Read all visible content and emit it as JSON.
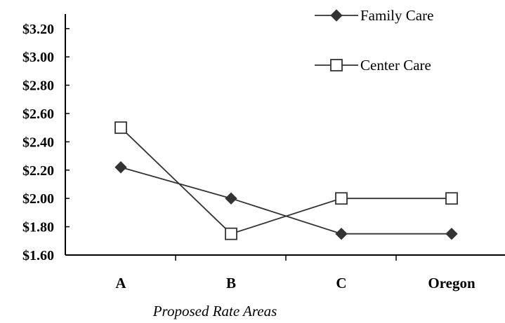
{
  "chart_data": {
    "type": "line",
    "categories": [
      "A",
      "B",
      "C",
      "Oregon"
    ],
    "series": [
      {
        "name": "Family Care",
        "marker": "filled-diamond",
        "color": "#333333",
        "values": [
          2.22,
          2.0,
          1.75,
          1.75
        ]
      },
      {
        "name": "Center Care",
        "marker": "open-square",
        "color": "#333333",
        "values": [
          2.5,
          1.75,
          2.0,
          2.0
        ]
      }
    ],
    "xlabel": "Proposed Rate Areas",
    "ylim": [
      1.6,
      3.3
    ],
    "yticks": [
      1.6,
      1.8,
      2.0,
      2.2,
      2.4,
      2.6,
      2.8,
      3.0,
      3.2
    ],
    "ytick_labels": [
      "$1.60",
      "$1.80",
      "$2.00",
      "$2.20",
      "$2.40",
      "$2.60",
      "$2.80",
      "$3.00",
      "$3.20"
    ],
    "grid": false,
    "legend_position": "top-right"
  }
}
